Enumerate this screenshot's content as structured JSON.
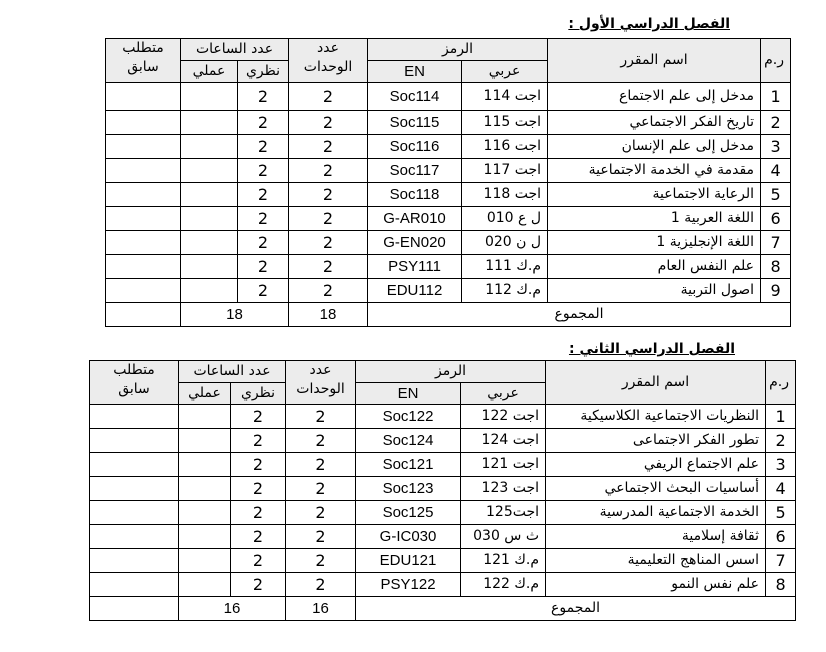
{
  "headers": {
    "num": "ر.م",
    "name": "اسم المقرر",
    "code": "الرمز",
    "code_ar": "عربي",
    "code_en": "EN",
    "units_l1": "عدد",
    "units_l2": "الوحدات",
    "hours": "عدد الساعات",
    "theory": "نظري",
    "practical": "عملي",
    "prereq_l1": "متطلب",
    "prereq_l2": "سابق",
    "total": "المجموع"
  },
  "semesters": [
    {
      "title": "الفصل الدراسي الأول :",
      "rows": [
        {
          "n": "1",
          "name": "مدخل إلى علم الاجتماع",
          "ar": "اجت 114",
          "en": "Soc114",
          "units": "2",
          "theory": "2",
          "practical": "",
          "prereq": ""
        },
        {
          "n": "2",
          "name": "تاريخ الفكر الاجتماعي",
          "ar": "اجت 115",
          "en": "Soc115",
          "units": "2",
          "theory": "2",
          "practical": "",
          "prereq": ""
        },
        {
          "n": "3",
          "name": "مدخل إلى علم الإنسان",
          "ar": "اجت 116",
          "en": "Soc116",
          "units": "2",
          "theory": "2",
          "practical": "",
          "prereq": ""
        },
        {
          "n": "4",
          "name": "مقدمة في الخدمة الاجتماعية",
          "ar": "اجت 117",
          "en": "Soc117",
          "units": "2",
          "theory": "2",
          "practical": "",
          "prereq": ""
        },
        {
          "n": "5",
          "name": "الرعاية الاجتماعية",
          "ar": "اجت 118",
          "en": "Soc118",
          "units": "2",
          "theory": "2",
          "practical": "",
          "prereq": ""
        },
        {
          "n": "6",
          "name": "اللغة العربية 1",
          "ar": "ل ع 010",
          "en": "G-AR010",
          "units": "2",
          "theory": "2",
          "practical": "",
          "prereq": ""
        },
        {
          "n": "7",
          "name": "اللغة الإنجليزية 1",
          "ar": "ل ن 020",
          "en": "G-EN020",
          "units": "2",
          "theory": "2",
          "practical": "",
          "prereq": ""
        },
        {
          "n": "8",
          "name": "علم النفس العام",
          "ar": "م.ك 111",
          "en": "PSY111",
          "units": "2",
          "theory": "2",
          "practical": "",
          "prereq": ""
        },
        {
          "n": "9",
          "name": "اصول التربية",
          "ar": "م.ك 112",
          "en": "EDU112",
          "units": "2",
          "theory": "2",
          "practical": "",
          "prereq": ""
        }
      ],
      "total_units": "18",
      "total_hours": "18"
    },
    {
      "title": "الفصل الدراسي الثاني :",
      "rows": [
        {
          "n": "1",
          "name": "النظريات الاجتماعية الكلاسيكية",
          "ar": "اجت 122",
          "en": "Soc122",
          "units": "2",
          "theory": "2",
          "practical": "",
          "prereq": ""
        },
        {
          "n": "2",
          "name": "تطور الفكر الاجتماعى",
          "ar": "اجت 124",
          "en": "Soc124",
          "units": "2",
          "theory": "2",
          "practical": "",
          "prereq": ""
        },
        {
          "n": "3",
          "name": "علم الاجتماع الريفي",
          "ar": "اجت 121",
          "en": "Soc121",
          "units": "2",
          "theory": "2",
          "practical": "",
          "prereq": ""
        },
        {
          "n": "4",
          "name": "أساسيات البحث الاجتماعي",
          "ar": "اجت 123",
          "en": "Soc123",
          "units": "2",
          "theory": "2",
          "practical": "",
          "prereq": ""
        },
        {
          "n": "5",
          "name": "الخدمة الاجتماعية المدرسية",
          "ar": "اجت125",
          "en": "Soc125",
          "units": "2",
          "theory": "2",
          "practical": "",
          "prereq": ""
        },
        {
          "n": "6",
          "name": "ثقافة إسلامية",
          "ar": "ث س 030",
          "en": "G-IC030",
          "units": "2",
          "theory": "2",
          "practical": "",
          "prereq": ""
        },
        {
          "n": "7",
          "name": "اسس المناهج التعليمية",
          "ar": "م.ك 121",
          "en": "EDU121",
          "units": "2",
          "theory": "2",
          "practical": "",
          "prereq": ""
        },
        {
          "n": "8",
          "name": "علم نفس النمو",
          "ar": "م.ك 122",
          "en": "PSY122",
          "units": "2",
          "theory": "2",
          "practical": "",
          "prereq": ""
        }
      ],
      "total_units": "16",
      "total_hours": "16"
    }
  ]
}
